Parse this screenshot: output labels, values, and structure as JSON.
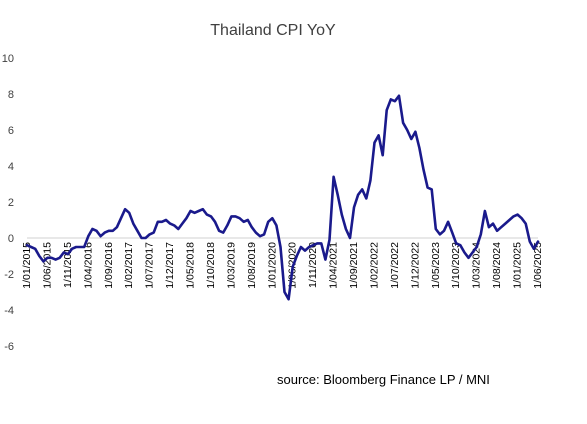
{
  "chart_data": {
    "type": "line",
    "title": "Thailand CPI YoY",
    "xlabel": "",
    "ylabel": "",
    "ylim": [
      -6,
      10
    ],
    "yticks": [
      "10",
      "8",
      "6",
      "4",
      "2",
      "0",
      "-2",
      "-4",
      "-6"
    ],
    "yvalues": [
      10,
      8,
      6,
      4,
      2,
      0,
      -2,
      -4,
      -6
    ],
    "grid": false,
    "legend": "none",
    "line_color": "#1a1a8c",
    "x_tick_labels": [
      "1/01/2015",
      "1/06/2015",
      "1/11/2015",
      "1/04/2016",
      "1/09/2016",
      "1/02/2017",
      "1/07/2017",
      "1/12/2017",
      "1/05/2018",
      "1/10/2018",
      "1/03/2019",
      "1/08/2019",
      "1/01/2020",
      "1/06/2020",
      "1/11/2020",
      "1/04/2021",
      "1/09/2021",
      "1/02/2022",
      "1/07/2022",
      "1/12/2022",
      "1/05/2023",
      "1/10/2023",
      "1/03/2024",
      "1/08/2024",
      "1/01/2025",
      "1/06/2025"
    ],
    "series": [
      {
        "values": [
          -0.4,
          -0.5,
          -0.6,
          -1.0,
          -1.3,
          -1.1,
          -1.1,
          -1.2,
          -1.1,
          -0.8,
          -0.9,
          -0.6,
          -0.5,
          -0.5,
          -0.5,
          0.1,
          0.5,
          0.4,
          0.1,
          0.3,
          0.4,
          0.4,
          0.6,
          1.1,
          1.6,
          1.4,
          0.8,
          0.4,
          0.0,
          0.0,
          0.2,
          0.3,
          0.9,
          0.9,
          1.0,
          0.8,
          0.7,
          0.5,
          0.8,
          1.1,
          1.5,
          1.4,
          1.5,
          1.6,
          1.3,
          1.2,
          0.9,
          0.4,
          0.3,
          0.7,
          1.2,
          1.2,
          1.1,
          0.9,
          1.0,
          0.6,
          0.3,
          0.1,
          0.2,
          0.9,
          1.1,
          0.7,
          -0.5,
          -3.0,
          -3.4,
          -1.6,
          -1.0,
          -0.5,
          -0.7,
          -0.5,
          -0.4,
          -0.3,
          -0.3,
          -1.2,
          -0.1,
          3.4,
          2.4,
          1.3,
          0.5,
          0.0,
          1.7,
          2.4,
          2.7,
          2.2,
          3.2,
          5.3,
          5.7,
          4.6,
          7.1,
          7.7,
          7.6,
          7.9,
          6.4,
          6.0,
          5.5,
          5.9,
          5.0,
          3.8,
          2.8,
          2.7,
          0.5,
          0.2,
          0.4,
          0.9,
          0.3,
          -0.3,
          -0.4,
          -0.8,
          -1.1,
          -0.8,
          -0.5,
          0.2,
          1.5,
          0.6,
          0.8,
          0.4,
          0.6,
          0.8,
          1.0,
          1.2,
          1.3,
          1.1,
          0.8,
          -0.2,
          -0.6,
          -0.2
        ]
      }
    ]
  },
  "source": "source: Bloomberg Finance LP / MNI"
}
